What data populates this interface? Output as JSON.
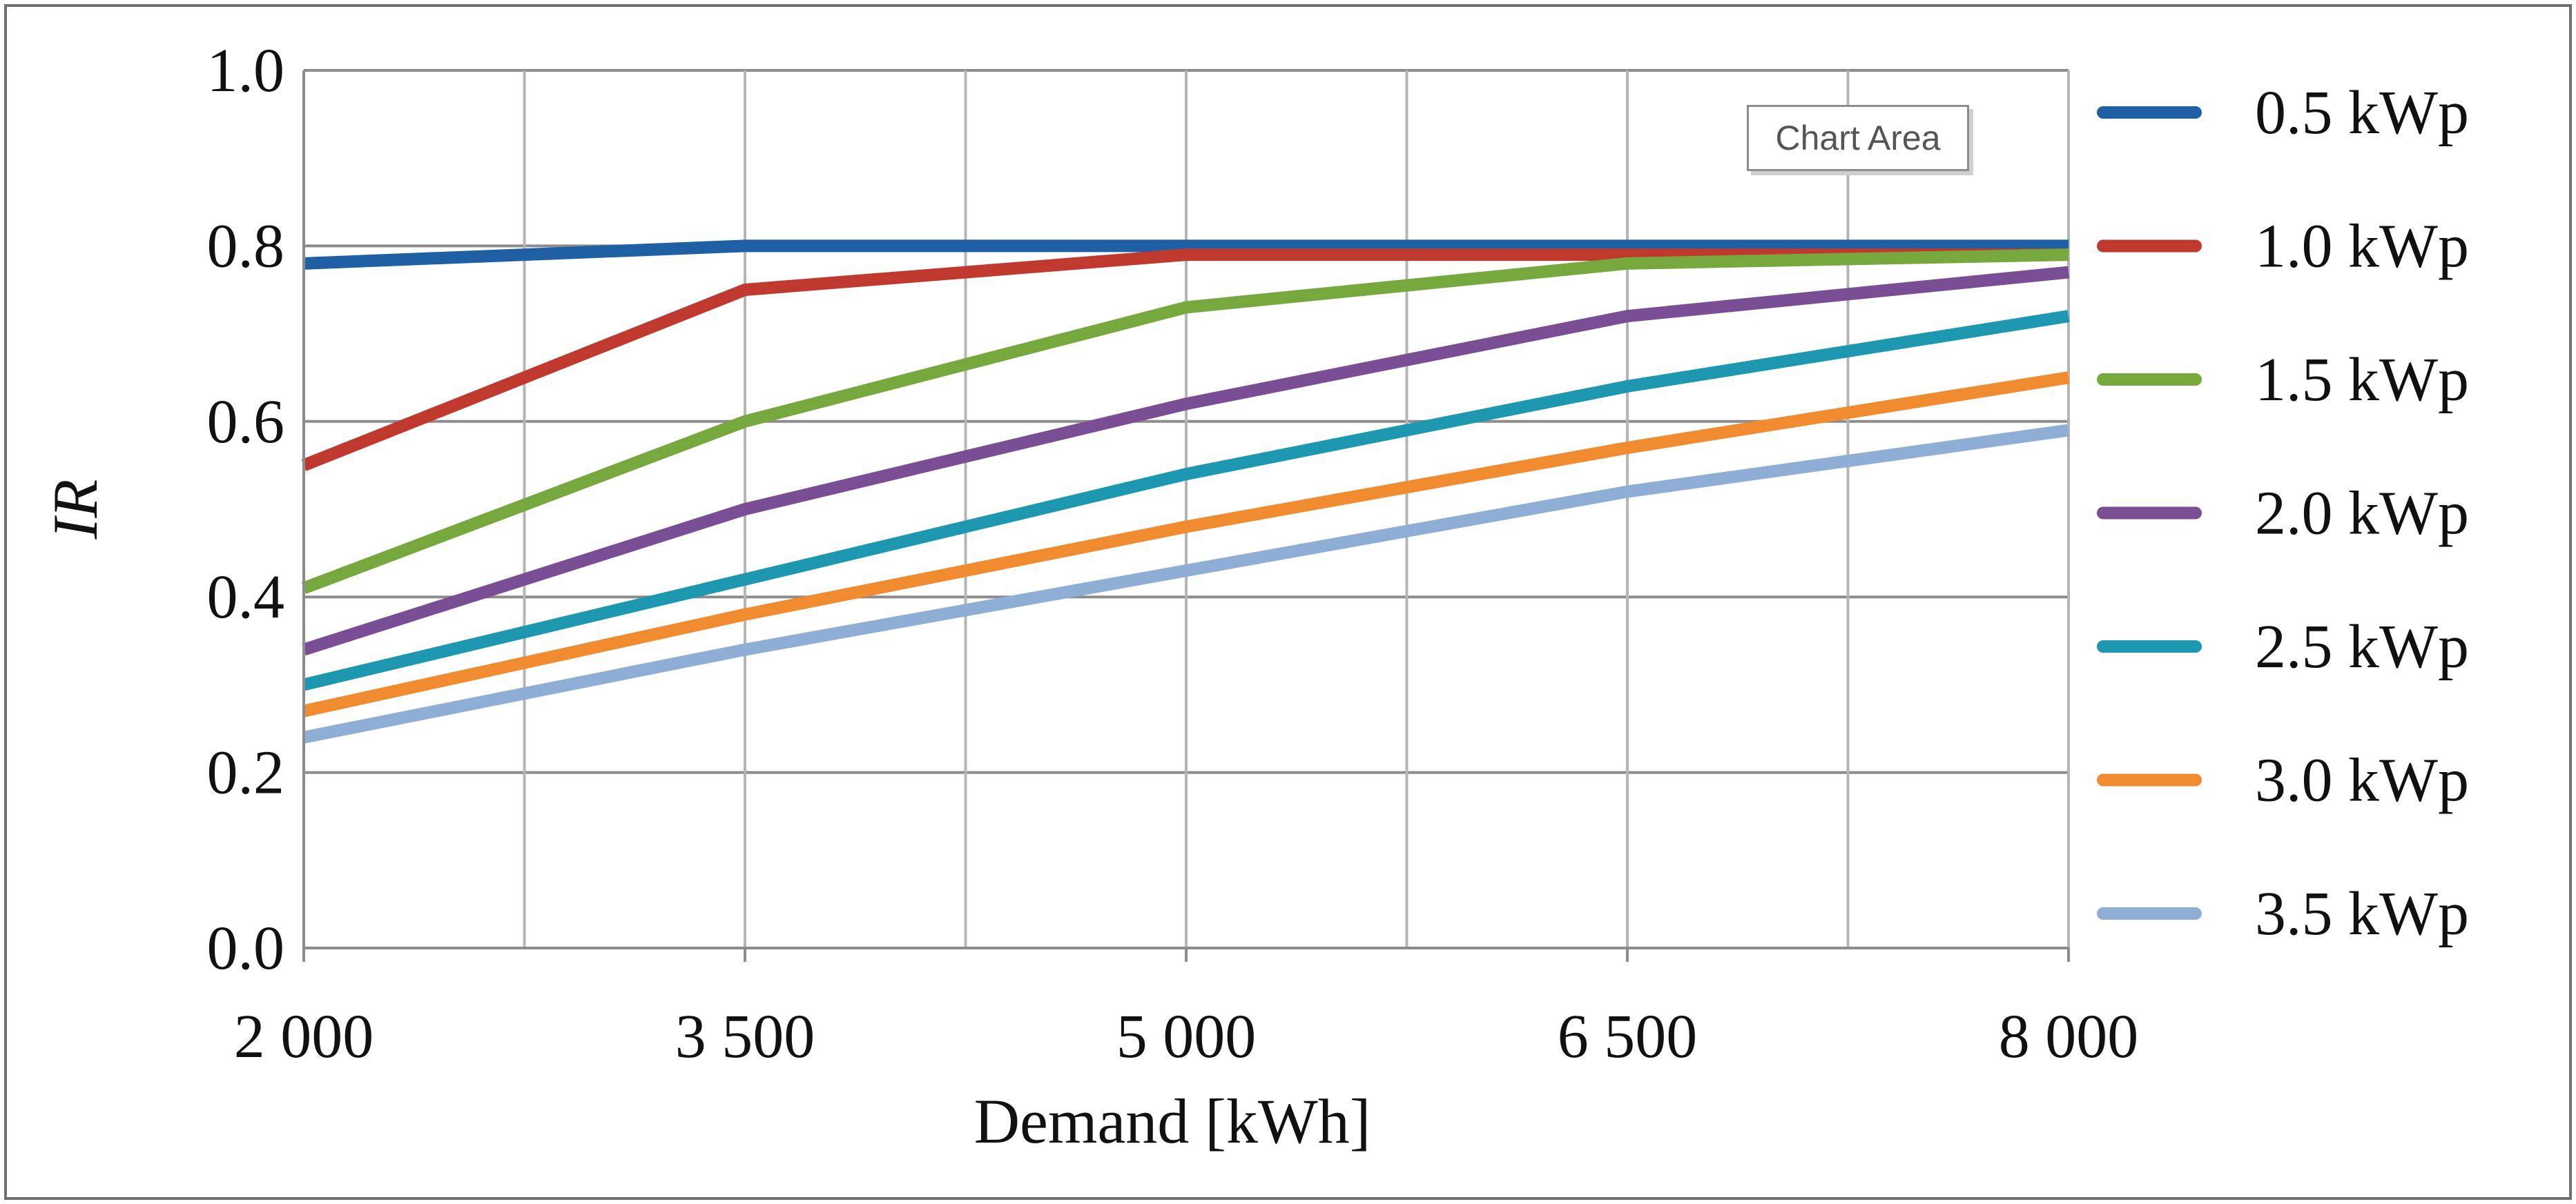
{
  "chart_data": {
    "type": "line",
    "title": "",
    "xlabel": "Demand [kWh]",
    "ylabel": "IR",
    "categories": [
      "2 000",
      "3 500",
      "5 000",
      "6 500",
      "8 000"
    ],
    "x": [
      2000,
      3500,
      5000,
      6500,
      8000
    ],
    "xlim": [
      2000,
      8000
    ],
    "ylim": [
      0.0,
      1.0
    ],
    "yticks": [
      "0.0",
      "0.2",
      "0.4",
      "0.6",
      "0.8",
      "1.0"
    ],
    "ytick_values": [
      0.0,
      0.2,
      0.4,
      0.6,
      0.8,
      1.0
    ],
    "grid": true,
    "legend_position": "right",
    "series": [
      {
        "name": "0.5 kWp",
        "color": "#1f5fa3",
        "values": [
          0.78,
          0.8,
          0.8,
          0.8,
          0.8
        ]
      },
      {
        "name": "1.0 kWp",
        "color": "#c0392f",
        "values": [
          0.55,
          0.75,
          0.79,
          0.79,
          0.79
        ]
      },
      {
        "name": "1.5 kWp",
        "color": "#77a83e",
        "values": [
          0.41,
          0.6,
          0.73,
          0.78,
          0.79
        ]
      },
      {
        "name": "2.0 kWp",
        "color": "#7a4e94",
        "values": [
          0.34,
          0.5,
          0.62,
          0.72,
          0.77
        ]
      },
      {
        "name": "2.5 kWp",
        "color": "#1d98b0",
        "values": [
          0.3,
          0.42,
          0.54,
          0.64,
          0.72
        ]
      },
      {
        "name": "3.0 kWp",
        "color": "#f18b2f",
        "values": [
          0.27,
          0.38,
          0.48,
          0.57,
          0.65
        ]
      },
      {
        "name": "3.5 kWp",
        "color": "#8faed6",
        "values": [
          0.24,
          0.34,
          0.43,
          0.52,
          0.59
        ]
      }
    ]
  },
  "tooltip": {
    "label": "Chart Area"
  }
}
